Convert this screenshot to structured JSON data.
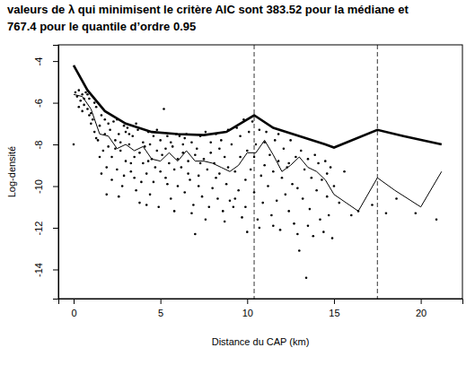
{
  "chart_data": {
    "type": "scatter",
    "title": [
      "valeurs de λ qui minimisent le critère AIC sont 383.52 pour la médiane et",
      "767.4 pour le quantile d’ordre 0.95"
    ],
    "x_label": "Distance du CAP (km)",
    "y_label": "Log-densité",
    "xlim": [
      -0.88,
      22.4
    ],
    "ylim": [
      -15.4,
      -3.22
    ],
    "xticks": [
      0,
      5,
      10,
      15,
      20
    ],
    "yticks": [
      -4,
      -6,
      -8,
      -10,
      -12,
      -14
    ],
    "grid": false,
    "vlines": [
      10.4,
      17.5
    ],
    "series": [
      {
        "type": "scatter",
        "color": "#000000",
        "marker": "circle",
        "x": [
          0.1,
          0.2,
          0.3,
          0.4,
          0.5,
          0.6,
          0.7,
          0.8,
          0.9,
          1.0,
          0.3,
          0.6,
          0.9,
          0.0,
          1.0,
          0.5,
          0.8,
          1.1,
          1.2,
          1.3,
          1.4,
          1.5,
          1.6,
          1.7,
          1.8,
          1.9,
          2.0,
          1.2,
          1.5,
          1.8,
          1.9,
          1.3,
          1.6,
          2.0,
          2.1,
          2.2,
          2.3,
          2.4,
          2.5,
          2.6,
          2.7,
          2.8,
          2.9,
          3.0,
          2.2,
          2.5,
          2.7,
          2.9,
          2.4,
          3.0,
          2.6,
          3.1,
          3.2,
          3.3,
          3.4,
          3.5,
          3.6,
          3.7,
          3.8,
          3.9,
          4.0,
          3.3,
          3.6,
          3.8,
          4.0,
          3.5,
          3.2,
          4.1,
          4.2,
          4.3,
          4.4,
          4.5,
          4.6,
          4.7,
          4.8,
          4.9,
          5.0,
          4.3,
          4.6,
          4.8,
          5.0,
          4.4,
          4.2,
          5.1,
          5.2,
          5.3,
          5.4,
          5.5,
          5.6,
          5.7,
          5.8,
          5.9,
          6.0,
          5.3,
          5.6,
          5.8,
          6.0,
          5.4,
          6.1,
          6.2,
          6.3,
          6.4,
          6.5,
          6.6,
          6.7,
          6.8,
          6.9,
          7.0,
          6.3,
          6.6,
          6.8,
          7.0,
          6.4,
          7.1,
          7.2,
          7.3,
          7.4,
          7.5,
          7.6,
          7.7,
          7.8,
          7.9,
          8.0,
          7.3,
          7.6,
          7.9,
          7.2,
          8.1,
          8.2,
          8.3,
          8.4,
          8.5,
          8.6,
          8.7,
          8.8,
          8.9,
          9.0,
          8.4,
          8.7,
          8.9,
          8.2,
          9.1,
          9.2,
          9.3,
          9.4,
          9.5,
          9.6,
          9.7,
          9.8,
          9.9,
          10.0,
          9.3,
          9.6,
          9.9,
          10.0,
          10.1,
          10.2,
          10.3,
          10.4,
          10.5,
          10.6,
          10.7,
          10.8,
          10.9,
          11.0,
          10.4,
          10.7,
          11.0,
          11.1,
          11.2,
          11.3,
          11.4,
          11.5,
          11.6,
          11.7,
          11.8,
          11.9,
          12.0,
          11.5,
          11.8,
          12.1,
          12.2,
          12.3,
          12.4,
          12.5,
          12.6,
          12.7,
          12.8,
          12.9,
          13.0,
          12.4,
          12.9,
          13.1,
          13.2,
          13.3,
          13.4,
          13.5,
          13.6,
          13.7,
          13.8,
          13.9,
          14.0,
          13.5,
          14.1,
          14.2,
          14.3,
          14.4,
          14.5,
          14.6,
          14.7,
          14.8,
          14.9,
          15.0,
          14.6,
          15.3,
          15.6,
          16.0,
          16.4,
          17.2,
          18.0,
          18.6,
          19.7,
          20.9
        ],
        "values": [
          -5.5,
          -5.7,
          -5.4,
          -5.9,
          -5.6,
          -6.1,
          -5.5,
          -6.3,
          -5.8,
          -6.5,
          -6.2,
          -5.8,
          -6.6,
          -8.0,
          -7.0,
          -6.4,
          -5.6,
          -6.8,
          -7.4,
          -6.2,
          -7.8,
          -7.1,
          -6.6,
          -8.3,
          -7.5,
          -9.1,
          -7.0,
          -6.0,
          -8.6,
          -6.8,
          -10.4,
          -7.7,
          -9.4,
          -8.1,
          -7.3,
          -8.6,
          -6.9,
          -7.8,
          -9.2,
          -7.5,
          -8.3,
          -10.0,
          -7.1,
          -8.8,
          -9.7,
          -6.8,
          -7.9,
          -9.5,
          -8.2,
          -7.4,
          -10.5,
          -7.2,
          -8.0,
          -9.3,
          -7.6,
          -8.6,
          -10.2,
          -7.3,
          -8.4,
          -9.8,
          -7.9,
          -8.9,
          -7.0,
          -10.8,
          -8.9,
          -9.6,
          -7.5,
          -8.1,
          -9.4,
          -7.4,
          -10.4,
          -8.7,
          -7.6,
          -9.1,
          -8.3,
          -11.0,
          -7.8,
          -8.8,
          -9.8,
          -7.3,
          -9.3,
          -8.0,
          -10.9,
          -8.5,
          -6.3,
          -9.6,
          -7.6,
          -8.9,
          -10.6,
          -8.1,
          -9.2,
          -7.5,
          -10.0,
          -8.2,
          -7.9,
          -11.2,
          -8.7,
          -9.9,
          -7.6,
          -9.1,
          -8.4,
          -10.3,
          -7.5,
          -8.8,
          -9.7,
          -7.9,
          -10.9,
          -12.3,
          -8.0,
          -9.4,
          -11.3,
          -8.5,
          -7.7,
          -8.2,
          -9.5,
          -7.6,
          -10.5,
          -8.7,
          -7.4,
          -9.2,
          -11.0,
          -8.4,
          -10.1,
          -8.9,
          -11.6,
          -7.9,
          -10.0,
          -8.9,
          -7.5,
          -10.6,
          -9.4,
          -7.8,
          -11.2,
          -8.6,
          -9.9,
          -7.3,
          -10.7,
          -8.2,
          -11.7,
          -9.1,
          -9.6,
          -8.0,
          -11.0,
          -9.3,
          -7.2,
          -10.2,
          -8.6,
          -11.5,
          -6.8,
          -9.7,
          -8.3,
          -10.6,
          -7.6,
          -11.0,
          -12.2,
          -7.4,
          -9.2,
          -6.9,
          -10.3,
          -8.0,
          -11.6,
          -7.3,
          -9.5,
          -10.8,
          -7.9,
          -8.6,
          -12.0,
          -9.0,
          -7.4,
          -10.0,
          -8.5,
          -11.4,
          -9.3,
          -7.8,
          -10.7,
          -8.8,
          -12.1,
          -9.6,
          -11.9,
          -7.5,
          -8.2,
          -10.4,
          -9.1,
          -11.2,
          -7.8,
          -9.9,
          -11.8,
          -8.6,
          -10.1,
          -13.1,
          -8.9,
          -12.3,
          -8.3,
          -10.6,
          -9.2,
          -14.4,
          -8.7,
          -11.1,
          -9.6,
          -12.4,
          -8.5,
          -10.2,
          -11.9,
          -8.9,
          -11.6,
          -9.7,
          -12.2,
          -8.8,
          -10.5,
          -11.4,
          -9.1,
          -12.5,
          -10.0,
          -9.4,
          -10.8,
          -9.3,
          -11.4,
          -11.2,
          -10.9,
          -11.3,
          -10.6,
          -11.3,
          -11.6
        ]
      },
      {
        "type": "line",
        "color": "#000000",
        "line_style": "solid",
        "x": [
          0,
          0.5,
          1,
          1.5,
          2,
          2.5,
          3,
          3.5,
          4,
          4.5,
          5,
          5.5,
          6,
          6.5,
          7,
          7.5,
          8,
          8.5,
          9,
          9.5,
          10,
          10.5,
          11,
          11.5,
          12,
          12.5,
          13,
          13.5,
          14,
          14.5,
          15,
          16.4,
          17.5,
          18.5,
          20,
          21.2
        ],
        "values": [
          -5.6,
          -5.7,
          -6.3,
          -7.5,
          -7.6,
          -8.2,
          -8.0,
          -8.3,
          -8.1,
          -8.7,
          -8.8,
          -8.4,
          -8.8,
          -8.3,
          -8.8,
          -8.8,
          -8.9,
          -9.1,
          -9.3,
          -9.0,
          -8.4,
          -8.4,
          -7.8,
          -8.5,
          -9.3,
          -9.0,
          -8.6,
          -9.1,
          -9.3,
          -9.7,
          -10.4,
          -11.2,
          -9.6,
          -10.2,
          -11.0,
          -9.3
        ]
      },
      {
        "type": "line",
        "color": "#000000",
        "line_style": "solid",
        "x": [
          0,
          0.8,
          1.8,
          3,
          4.5,
          6,
          7.5,
          8.8,
          10.4,
          11.5,
          13,
          14.5,
          15,
          17.5,
          19,
          21.2
        ],
        "values": [
          -4.2,
          -5.4,
          -6.4,
          -7.0,
          -7.4,
          -7.5,
          -7.55,
          -7.4,
          -6.6,
          -7.2,
          -7.6,
          -8.0,
          -8.15,
          -7.3,
          -7.6,
          -8.0
        ]
      }
    ]
  }
}
